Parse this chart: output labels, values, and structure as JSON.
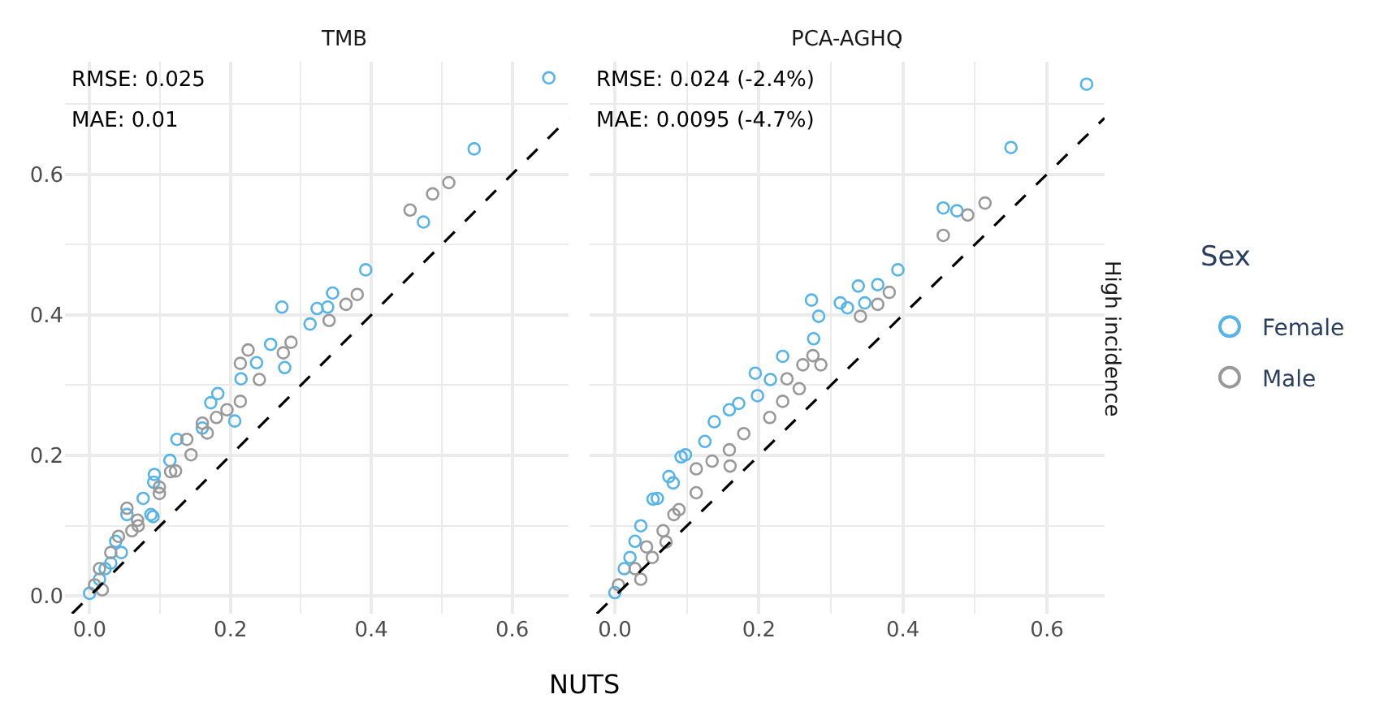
{
  "chart_data": [
    {
      "type": "scatter",
      "title": "TMB",
      "xlabel": "NUTS",
      "annotations": [
        "RMSE: 0.025",
        "MAE: 0.01"
      ],
      "marker": "circle",
      "grid": true,
      "xlim": [
        -0.035,
        0.68
      ],
      "ylim": [
        -0.025,
        0.76
      ],
      "xticks": [
        {
          "value": 0,
          "label": "0.0"
        },
        {
          "value": 0.2,
          "label": "0.2"
        },
        {
          "value": 0.4,
          "label": "0.4"
        },
        {
          "value": 0.6,
          "label": "0.6"
        }
      ],
      "yticks": [
        {
          "value": 0,
          "label": "0.0"
        },
        {
          "value": 0.2,
          "label": "0.2"
        },
        {
          "value": 0.4,
          "label": "0.4"
        },
        {
          "value": 0.6,
          "label": "0.6"
        }
      ],
      "series": [
        {
          "color": "#56b4e9",
          "x": [
            0.652,
            0.546,
            0.474,
            0.392,
            0.345,
            0.323,
            0.338,
            0.273,
            0.313,
            0.277,
            0.257,
            0.237,
            0.215,
            0.172,
            0.182,
            0.206,
            0.124,
            0.092,
            0.09,
            0.0,
            0.022,
            0.037,
            0.053,
            0.076,
            0.091,
            0.114,
            0.16,
            0.03,
            0.045,
            0.014,
            0.087
          ],
          "values": [
            0.737,
            0.636,
            0.532,
            0.464,
            0.431,
            0.409,
            0.411,
            0.411,
            0.387,
            0.325,
            0.358,
            0.332,
            0.309,
            0.275,
            0.288,
            0.249,
            0.223,
            0.173,
            0.113,
            0.004,
            0.039,
            0.078,
            0.116,
            0.139,
            0.162,
            0.193,
            0.239,
            0.047,
            0.062,
            0.024,
            0.116
          ]
        },
        {
          "color": "#999999",
          "x": [
            0.455,
            0.487,
            0.51,
            0.38,
            0.364,
            0.34,
            0.286,
            0.275,
            0.225,
            0.214,
            0.241,
            0.214,
            0.195,
            0.18,
            0.16,
            0.138,
            0.115,
            0.099,
            0.069,
            0.007,
            0.03,
            0.053,
            0.068,
            0.099,
            0.122,
            0.144,
            0.167,
            0.014,
            0.041,
            0.06,
            0.018
          ],
          "values": [
            0.549,
            0.572,
            0.588,
            0.429,
            0.415,
            0.392,
            0.361,
            0.346,
            0.35,
            0.331,
            0.308,
            0.277,
            0.265,
            0.254,
            0.246,
            0.223,
            0.177,
            0.146,
            0.1,
            0.016,
            0.062,
            0.125,
            0.108,
            0.155,
            0.178,
            0.201,
            0.232,
            0.039,
            0.085,
            0.093,
            0.009
          ]
        },
        {
          "type": "line",
          "marker": "none",
          "color": "#000000",
          "line_style": "dashed",
          "x": [
            -0.025,
            0.68
          ],
          "values": [
            -0.025,
            0.68
          ]
        }
      ]
    },
    {
      "type": "scatter",
      "title": "PCA-AGHQ",
      "y2label": "High incidence",
      "legend_title": "Sex",
      "annotations": [
        "RMSE: 0.024 (-2.4%)",
        "MAE: 0.0095 (-4.7%)"
      ],
      "marker": "circle",
      "grid": true,
      "legend": "right",
      "tick_labels": "x",
      "xlim": [
        -0.035,
        0.68
      ],
      "ylim": [
        -0.025,
        0.76
      ],
      "xticks": [
        {
          "value": 0,
          "label": "0.0"
        },
        {
          "value": 0.2,
          "label": "0.2"
        },
        {
          "value": 0.4,
          "label": "0.4"
        },
        {
          "value": 0.6,
          "label": "0.6"
        }
      ],
      "yticks": [
        {
          "value": 0,
          "label": null
        },
        {
          "value": 0.2,
          "label": null
        },
        {
          "value": 0.4,
          "label": null
        },
        {
          "value": 0.6,
          "label": null
        }
      ],
      "series": [
        {
          "name": "Female",
          "color": "#56b4e9",
          "x": [
            0.655,
            0.55,
            0.456,
            0.475,
            0.393,
            0.365,
            0.338,
            0.347,
            0.313,
            0.323,
            0.273,
            0.283,
            0.276,
            0.233,
            0.195,
            0.216,
            0.172,
            0.159,
            0.138,
            0.125,
            0.092,
            0.081,
            0.053,
            0.036,
            0.198,
            0.0,
            0.013,
            0.028,
            0.059,
            0.075,
            0.098,
            0.021
          ],
          "values": [
            0.728,
            0.638,
            0.552,
            0.548,
            0.464,
            0.443,
            0.441,
            0.417,
            0.417,
            0.41,
            0.421,
            0.398,
            0.366,
            0.341,
            0.317,
            0.308,
            0.274,
            0.265,
            0.248,
            0.22,
            0.198,
            0.161,
            0.138,
            0.1,
            0.285,
            0.005,
            0.039,
            0.078,
            0.139,
            0.17,
            0.201,
            0.055
          ]
        },
        {
          "name": "Male",
          "color": "#999999",
          "x": [
            0.456,
            0.49,
            0.514,
            0.381,
            0.365,
            0.341,
            0.286,
            0.261,
            0.239,
            0.256,
            0.233,
            0.215,
            0.179,
            0.159,
            0.16,
            0.135,
            0.113,
            0.089,
            0.071,
            0.275,
            0.005,
            0.028,
            0.044,
            0.067,
            0.082,
            0.113,
            0.036,
            0.052
          ],
          "values": [
            0.513,
            0.542,
            0.559,
            0.432,
            0.415,
            0.398,
            0.329,
            0.329,
            0.309,
            0.295,
            0.277,
            0.254,
            0.231,
            0.208,
            0.185,
            0.192,
            0.181,
            0.123,
            0.077,
            0.342,
            0.016,
            0.039,
            0.07,
            0.093,
            0.116,
            0.147,
            0.024,
            0.055
          ]
        },
        {
          "type": "line",
          "marker": "none",
          "color": "#000000",
          "line_style": "dashed",
          "x": [
            -0.025,
            0.68
          ],
          "values": [
            -0.025,
            0.68
          ]
        }
      ]
    }
  ]
}
